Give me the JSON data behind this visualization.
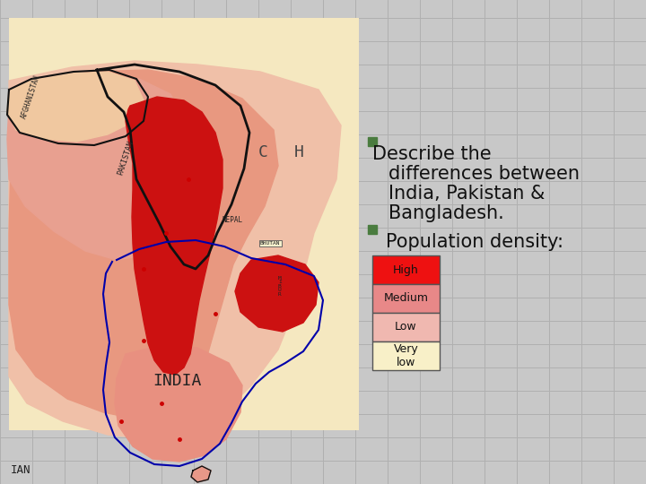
{
  "bg_color": "#c8c8c8",
  "grid_line_color": "#b0b0b0",
  "map_bg_color": "#f5e8c0",
  "map_border_color": "#888888",
  "bullet_color": "#4a7c3f",
  "bullet1_line1": "Describe the",
  "bullet1_line2": "differences between",
  "bullet1_line3": "India, Pakistan &",
  "bullet1_line4": "Bangladesh.",
  "bullet2": "Population density:",
  "text_color": "#111111",
  "font_size_bullet": 15,
  "legend_labels": [
    "High",
    "Medium",
    "Low",
    "Very\nlow"
  ],
  "legend_colors": [
    "#ee1111",
    "#e88888",
    "#f0b8b0",
    "#f8f0c8"
  ],
  "legend_border_color": "#555555",
  "region_very_low_color": "#f5e8c0",
  "region_low_color": "#f0c8b8",
  "region_medium_color": "#e8907880",
  "region_high_color": "#cc1111",
  "border_color": "#111111",
  "text_on_map_color": "#222222",
  "ian_label": "IAN",
  "india_label": "INDIA",
  "ch_label": "C    H"
}
